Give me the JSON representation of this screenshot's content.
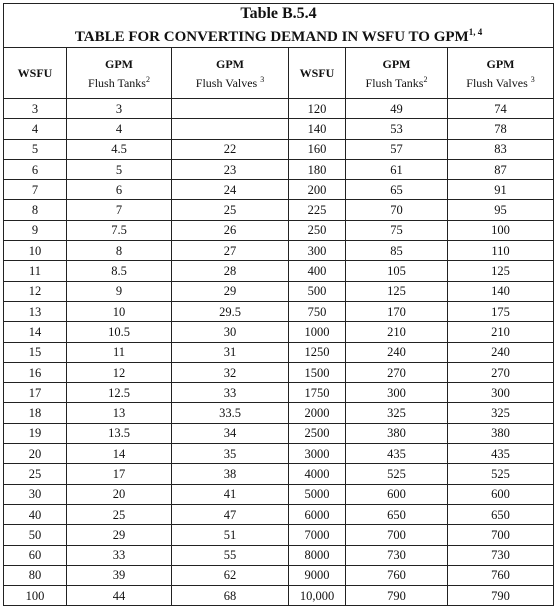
{
  "table": {
    "title_line1": "Table B.5.4",
    "title_line2": "TABLE FOR CONVERTING DEMAND IN WSFU TO GPM",
    "title_sup": "1, 4",
    "headers": {
      "wsfu": "WSFU",
      "gpm": "GPM",
      "flush_tanks": "Flush Tanks",
      "flush_tanks_sup": "2",
      "flush_valves": "Flush Valves",
      "flush_valves_sup": "3"
    },
    "rows": [
      [
        "3",
        "3",
        "",
        "120",
        "49",
        "74"
      ],
      [
        "4",
        "4",
        "",
        "140",
        "53",
        "78"
      ],
      [
        "5",
        "4.5",
        "22",
        "160",
        "57",
        "83"
      ],
      [
        "6",
        "5",
        "23",
        "180",
        "61",
        "87"
      ],
      [
        "7",
        "6",
        "24",
        "200",
        "65",
        "91"
      ],
      [
        "8",
        "7",
        "25",
        "225",
        "70",
        "95"
      ],
      [
        "9",
        "7.5",
        "26",
        "250",
        "75",
        "100"
      ],
      [
        "10",
        "8",
        "27",
        "300",
        "85",
        "110"
      ],
      [
        "11",
        "8.5",
        "28",
        "400",
        "105",
        "125"
      ],
      [
        "12",
        "9",
        "29",
        "500",
        "125",
        "140"
      ],
      [
        "13",
        "10",
        "29.5",
        "750",
        "170",
        "175"
      ],
      [
        "14",
        "10.5",
        "30",
        "1000",
        "210",
        "210"
      ],
      [
        "15",
        "11",
        "31",
        "1250",
        "240",
        "240"
      ],
      [
        "16",
        "12",
        "32",
        "1500",
        "270",
        "270"
      ],
      [
        "17",
        "12.5",
        "33",
        "1750",
        "300",
        "300"
      ],
      [
        "18",
        "13",
        "33.5",
        "2000",
        "325",
        "325"
      ],
      [
        "19",
        "13.5",
        "34",
        "2500",
        "380",
        "380"
      ],
      [
        "20",
        "14",
        "35",
        "3000",
        "435",
        "435"
      ],
      [
        "25",
        "17",
        "38",
        "4000",
        "525",
        "525"
      ],
      [
        "30",
        "20",
        "41",
        "5000",
        "600",
        "600"
      ],
      [
        "40",
        "25",
        "47",
        "6000",
        "650",
        "650"
      ],
      [
        "50",
        "29",
        "51",
        "7000",
        "700",
        "700"
      ],
      [
        "60",
        "33",
        "55",
        "8000",
        "730",
        "730"
      ],
      [
        "80",
        "39",
        "62",
        "9000",
        "760",
        "760"
      ],
      [
        "100",
        "44",
        "68",
        "10,000",
        "790",
        "790"
      ]
    ]
  }
}
